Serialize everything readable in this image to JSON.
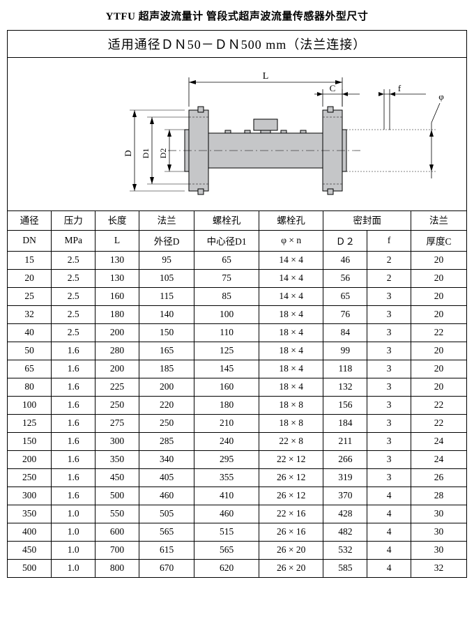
{
  "title": "YTFU 超声波流量计 管段式超声波流量传感器外型尺寸",
  "subtitle": "适用通径ＤＮ50－ＤＮ500 mm（法兰连接）",
  "diagram": {
    "labels": {
      "L": "L",
      "C": "C",
      "f": "f",
      "phi": "φ",
      "D": "D",
      "D1": "D1",
      "D2": "D2"
    },
    "fill": "#c5c6c8",
    "stroke": "#000000",
    "background": "#ffffff"
  },
  "table": {
    "header_row1": {
      "dn": "通径",
      "mpa": "压力",
      "l": "长度",
      "d": "法兰",
      "d1": "螺栓孔",
      "phi": "螺栓孔",
      "seal": "密封面",
      "c": "法兰"
    },
    "header_row2": {
      "dn": "DN",
      "mpa": "MPa",
      "l": "L",
      "d": "外径D",
      "d1": "中心径D1",
      "phi": "φ × n",
      "d2": "Ｄ２",
      "f": "f",
      "c": "厚度C"
    },
    "rows": [
      [
        "15",
        "2.5",
        "130",
        "95",
        "65",
        "14 × 4",
        "46",
        "2",
        "20"
      ],
      [
        "20",
        "2.5",
        "130",
        "105",
        "75",
        "14 × 4",
        "56",
        "2",
        "20"
      ],
      [
        "25",
        "2.5",
        "160",
        "115",
        "85",
        "14 × 4",
        "65",
        "3",
        "20"
      ],
      [
        "32",
        "2.5",
        "180",
        "140",
        "100",
        "18 × 4",
        "76",
        "3",
        "20"
      ],
      [
        "40",
        "2.5",
        "200",
        "150",
        "110",
        "18 × 4",
        "84",
        "3",
        "22"
      ],
      [
        "50",
        "1.6",
        "280",
        "165",
        "125",
        "18 × 4",
        "99",
        "3",
        "20"
      ],
      [
        "65",
        "1.6",
        "200",
        "185",
        "145",
        "18 × 4",
        "118",
        "3",
        "20"
      ],
      [
        "80",
        "1.6",
        "225",
        "200",
        "160",
        "18 × 4",
        "132",
        "3",
        "20"
      ],
      [
        "100",
        "1.6",
        "250",
        "220",
        "180",
        "18 × 8",
        "156",
        "3",
        "22"
      ],
      [
        "125",
        "1.6",
        "275",
        "250",
        "210",
        "18 × 8",
        "184",
        "3",
        "22"
      ],
      [
        "150",
        "1.6",
        "300",
        "285",
        "240",
        "22 × 8",
        "211",
        "3",
        "24"
      ],
      [
        "200",
        "1.6",
        "350",
        "340",
        "295",
        "22 × 12",
        "266",
        "3",
        "24"
      ],
      [
        "250",
        "1.6",
        "450",
        "405",
        "355",
        "26 × 12",
        "319",
        "3",
        "26"
      ],
      [
        "300",
        "1.6",
        "500",
        "460",
        "410",
        "26 × 12",
        "370",
        "4",
        "28"
      ],
      [
        "350",
        "1.0",
        "550",
        "505",
        "460",
        "22 × 16",
        "428",
        "4",
        "30"
      ],
      [
        "400",
        "1.0",
        "600",
        "565",
        "515",
        "26 × 16",
        "482",
        "4",
        "30"
      ],
      [
        "450",
        "1.0",
        "700",
        "615",
        "565",
        "26 × 20",
        "532",
        "4",
        "30"
      ],
      [
        "500",
        "1.0",
        "800",
        "670",
        "620",
        "26 × 20",
        "585",
        "4",
        "32"
      ]
    ]
  }
}
